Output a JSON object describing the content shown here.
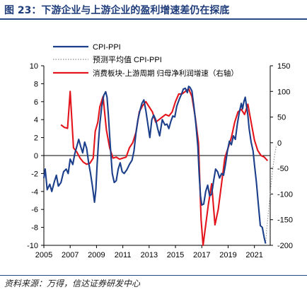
{
  "figure": {
    "title": "图 23：下游企业与上游企业的盈利增速差仍在探底",
    "source": "资料来源：万得，信达证券研发中心"
  },
  "chart_data": {
    "type": "line",
    "x_ticks": [
      "2005",
      "2007",
      "2009",
      "2011",
      "2013",
      "2015",
      "2017",
      "2019",
      "2021"
    ],
    "xlim": [
      2005,
      2022.2
    ],
    "y_left": {
      "ylim": [
        -10,
        10
      ],
      "ticks": [
        "10",
        "8",
        "6",
        "4",
        "2",
        "0",
        "-2",
        "-4",
        "-6",
        "-8",
        "-10"
      ]
    },
    "y_right": {
      "ylim": [
        -200,
        150
      ],
      "ticks": [
        "150",
        "100",
        "50",
        "0",
        "-50",
        "-100",
        "-150",
        "-200"
      ]
    },
    "legend": [
      "CPI-PPI",
      "预测平均值 CPI-PPI",
      "消费板块-上游周期 归母净利润增速（右轴）"
    ],
    "colors": {
      "cpi_ppi": "#1b3f8b",
      "forecast": "#8c8c8c",
      "consumer": "#e3141b"
    },
    "series": [
      {
        "name": "CPI-PPI",
        "axis": "left",
        "color": "#1b3f8b",
        "points": [
          [
            2005.0,
            -2.5
          ],
          [
            2005.1,
            -1.5
          ],
          [
            2005.25,
            -3.8
          ],
          [
            2005.45,
            -3.2
          ],
          [
            2005.6,
            -4.0
          ],
          [
            2005.8,
            -2.9
          ],
          [
            2005.95,
            -2.2
          ],
          [
            2006.1,
            -3.4
          ],
          [
            2006.3,
            -3.0
          ],
          [
            2006.5,
            -1.8
          ],
          [
            2006.7,
            -1.5
          ],
          [
            2006.85,
            -2.0
          ],
          [
            2007.0,
            -0.4
          ],
          [
            2007.2,
            -1.0
          ],
          [
            2007.35,
            0.2
          ],
          [
            2007.5,
            1.0
          ],
          [
            2007.65,
            1.8
          ],
          [
            2007.8,
            1.0
          ],
          [
            2007.95,
            0.3
          ],
          [
            2008.1,
            1.5
          ],
          [
            2008.25,
            0.8
          ],
          [
            2008.4,
            -0.8
          ],
          [
            2008.55,
            -2.0
          ],
          [
            2008.7,
            -3.5
          ],
          [
            2008.85,
            -5.2
          ],
          [
            2008.95,
            -3.8
          ],
          [
            2009.05,
            -1.0
          ],
          [
            2009.15,
            1.5
          ],
          [
            2009.25,
            3.5
          ],
          [
            2009.4,
            5.5
          ],
          [
            2009.55,
            6.7
          ],
          [
            2009.7,
            7.1
          ],
          [
            2009.8,
            6.5
          ],
          [
            2009.9,
            4.5
          ],
          [
            2010.05,
            1.0
          ],
          [
            2010.2,
            -2.0
          ],
          [
            2010.35,
            -3.0
          ],
          [
            2010.5,
            -2.8
          ],
          [
            2010.65,
            -1.5
          ],
          [
            2010.8,
            -0.8
          ],
          [
            2010.95,
            -1.8
          ],
          [
            2011.1,
            -2.0
          ],
          [
            2011.3,
            -1.6
          ],
          [
            2011.5,
            -1.0
          ],
          [
            2011.7,
            -0.5
          ],
          [
            2011.85,
            0.5
          ],
          [
            2012.0,
            2.5
          ],
          [
            2012.15,
            4.0
          ],
          [
            2012.3,
            5.0
          ],
          [
            2012.45,
            5.8
          ],
          [
            2012.6,
            6.2
          ],
          [
            2012.75,
            5.0
          ],
          [
            2012.9,
            3.5
          ],
          [
            2013.05,
            2.0
          ],
          [
            2013.2,
            4.0
          ],
          [
            2013.35,
            4.5
          ],
          [
            2013.5,
            4.0
          ],
          [
            2013.65,
            3.0
          ],
          [
            2013.8,
            2.2
          ],
          [
            2014.0,
            4.0
          ],
          [
            2014.2,
            3.4
          ],
          [
            2014.35,
            3.5
          ],
          [
            2014.5,
            3.0
          ],
          [
            2014.65,
            3.8
          ],
          [
            2014.8,
            4.4
          ],
          [
            2014.95,
            4.3
          ],
          [
            2015.1,
            5.5
          ],
          [
            2015.3,
            6.3
          ],
          [
            2015.45,
            6.8
          ],
          [
            2015.6,
            7.4
          ],
          [
            2015.75,
            7.5
          ],
          [
            2015.9,
            7.0
          ],
          [
            2016.0,
            7.7
          ],
          [
            2016.1,
            7.6
          ],
          [
            2016.25,
            7.2
          ],
          [
            2016.4,
            5.5
          ],
          [
            2016.55,
            3.5
          ],
          [
            2016.7,
            1.0
          ],
          [
            2016.8,
            -2.0
          ],
          [
            2016.9,
            -4.5
          ],
          [
            2017.0,
            -5.5
          ],
          [
            2017.15,
            -5.4
          ],
          [
            2017.3,
            -4.0
          ],
          [
            2017.45,
            -3.3
          ],
          [
            2017.6,
            -4.5
          ],
          [
            2017.75,
            -4.3
          ],
          [
            2017.9,
            -2.8
          ],
          [
            2018.05,
            -1.5
          ],
          [
            2018.2,
            -1.8
          ],
          [
            2018.35,
            -2.5
          ],
          [
            2018.5,
            -2.0
          ],
          [
            2018.65,
            -2.2
          ],
          [
            2018.8,
            -1.0
          ],
          [
            2018.95,
            0.5
          ],
          [
            2019.1,
            1.6
          ],
          [
            2019.25,
            1.2
          ],
          [
            2019.4,
            2.2
          ],
          [
            2019.55,
            1.8
          ],
          [
            2019.7,
            3.5
          ],
          [
            2019.85,
            4.8
          ],
          [
            2020.0,
            5.8
          ],
          [
            2020.1,
            5.2
          ],
          [
            2020.2,
            6.0
          ],
          [
            2020.3,
            6.5
          ],
          [
            2020.4,
            5.5
          ],
          [
            2020.5,
            4.5
          ],
          [
            2020.6,
            3.0
          ],
          [
            2020.75,
            1.5
          ],
          [
            2020.9,
            0.5
          ],
          [
            2021.0,
            -1.0
          ],
          [
            2021.15,
            -3.0
          ],
          [
            2021.3,
            -5.5
          ],
          [
            2021.45,
            -7.8
          ],
          [
            2021.6,
            -8.0
          ],
          [
            2021.75,
            -9.2
          ],
          [
            2021.85,
            -9.8
          ]
        ]
      },
      {
        "name": "预测平均值 CPI-PPI",
        "axis": "left",
        "color": "#8c8c8c",
        "points": [
          [
            2021.85,
            -9.8
          ],
          [
            2021.95,
            -8.0
          ],
          [
            2022.05,
            -6.5
          ],
          [
            2022.15,
            -5.0
          ],
          [
            2022.25,
            -3.5
          ],
          [
            2022.35,
            -2.0
          ],
          [
            2022.45,
            -0.8
          ],
          [
            2022.55,
            0.2
          ],
          [
            2022.65,
            1.0
          ]
        ]
      },
      {
        "name": "消费板块-上游周期 归母净利润增速（右轴）",
        "axis": "right",
        "color": "#e3141b",
        "points": [
          [
            2006.3,
            35
          ],
          [
            2006.55,
            30
          ],
          [
            2006.8,
            28
          ],
          [
            2007.0,
            100
          ],
          [
            2007.25,
            -10
          ],
          [
            2007.5,
            -18
          ],
          [
            2007.75,
            -30
          ],
          [
            2008.0,
            -38
          ],
          [
            2008.25,
            -42
          ],
          [
            2008.5,
            -40
          ],
          [
            2008.75,
            -30
          ],
          [
            2008.9,
            22
          ],
          [
            2009.1,
            40
          ],
          [
            2009.25,
            70
          ],
          [
            2009.5,
            90
          ],
          [
            2009.75,
            25
          ],
          [
            2010.0,
            -10
          ],
          [
            2010.25,
            -30
          ],
          [
            2010.5,
            -28
          ],
          [
            2010.75,
            -32
          ],
          [
            2011.0,
            -30
          ],
          [
            2011.25,
            -28
          ],
          [
            2011.5,
            -10
          ],
          [
            2011.75,
            0
          ],
          [
            2012.0,
            20
          ],
          [
            2012.25,
            60
          ],
          [
            2012.5,
            72
          ],
          [
            2012.75,
            80
          ],
          [
            2013.0,
            70
          ],
          [
            2013.25,
            60
          ],
          [
            2013.5,
            40
          ],
          [
            2013.75,
            45
          ],
          [
            2014.0,
            50
          ],
          [
            2014.25,
            55
          ],
          [
            2014.5,
            52
          ],
          [
            2014.75,
            60
          ],
          [
            2015.0,
            80
          ],
          [
            2015.25,
            95
          ],
          [
            2015.5,
            95
          ],
          [
            2015.75,
            100
          ],
          [
            2016.0,
            105
          ],
          [
            2016.25,
            90
          ],
          [
            2016.5,
            50
          ],
          [
            2016.75,
            0
          ],
          [
            2016.95,
            -150
          ],
          [
            2017.1,
            -200
          ],
          [
            2017.25,
            -170
          ],
          [
            2017.5,
            -120
          ],
          [
            2017.75,
            -80
          ],
          [
            2018.0,
            -160
          ],
          [
            2018.25,
            -130
          ],
          [
            2018.5,
            -80
          ],
          [
            2018.75,
            -30
          ],
          [
            2019.0,
            -10
          ],
          [
            2019.25,
            10
          ],
          [
            2019.5,
            40
          ],
          [
            2019.75,
            60
          ],
          [
            2020.0,
            65
          ],
          [
            2020.25,
            55
          ],
          [
            2020.5,
            75
          ],
          [
            2020.75,
            40
          ],
          [
            2021.0,
            5
          ],
          [
            2021.25,
            -15
          ],
          [
            2021.5,
            -25
          ],
          [
            2021.75,
            -28
          ],
          [
            2022.0,
            -35
          ]
        ]
      }
    ]
  }
}
